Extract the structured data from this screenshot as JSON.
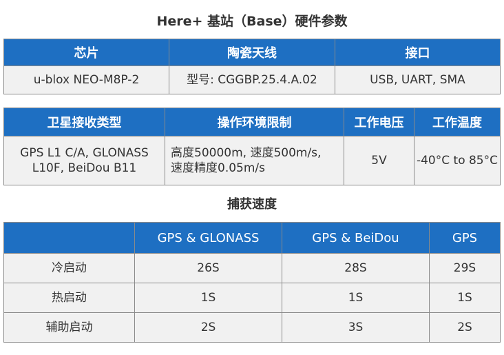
{
  "title": "Here+ 基站（Base）硬件参数",
  "hardware": {
    "headers": [
      "芯片",
      "陶瓷天线",
      "接口"
    ],
    "row": [
      "u-blox NEO-M8P-2",
      "型号: CGGBP.25.4.A.02",
      "USB, UART, SMA"
    ]
  },
  "specs": {
    "headers": [
      "卫星接收类型",
      "操作环境限制",
      "工作电压",
      "工作温度"
    ],
    "row": {
      "gnss_line1": "GPS L1 C/A, GLONASS",
      "gnss_line2": "L10F, BeiDou B11",
      "env_line1": "高度50000m, 速度500m/s,",
      "env_line2": "速度精度0.05m/s",
      "voltage": "5V",
      "temperature": "-40°C to 85°C"
    }
  },
  "capture_title": "捕获速度",
  "capture": {
    "headers": [
      "",
      "GPS & GLONASS",
      "GPS & BeiDou",
      "GPS"
    ],
    "rows": [
      {
        "label": "冷启动",
        "values": [
          "26S",
          "28S",
          "29S"
        ]
      },
      {
        "label": "热启动",
        "values": [
          "1S",
          "1S",
          "1S"
        ]
      },
      {
        "label": "辅助启动",
        "values": [
          "2S",
          "3S",
          "2S"
        ]
      }
    ]
  },
  "colors": {
    "header_bg": "#1e6fc2",
    "cell_bg": "#f1f1f1"
  }
}
